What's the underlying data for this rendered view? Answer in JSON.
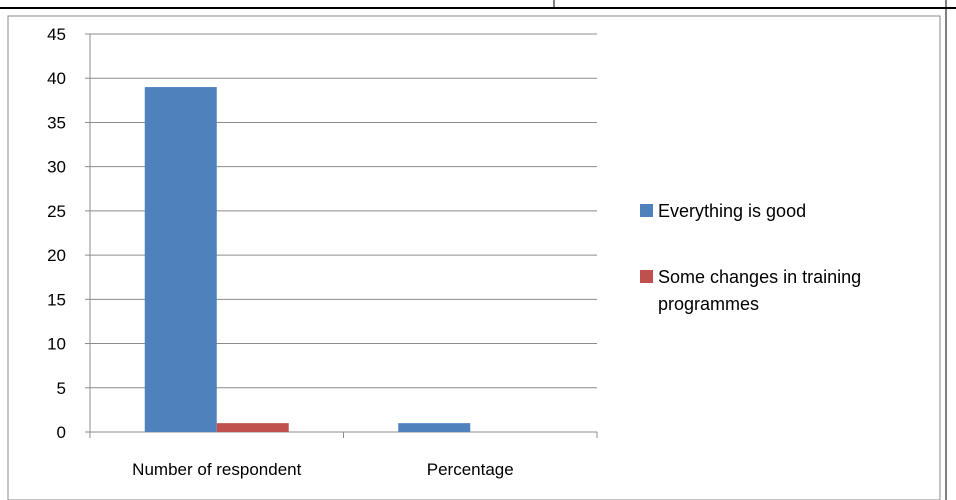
{
  "chart_data": {
    "type": "bar",
    "categories": [
      "Number of respondent",
      "Percentage"
    ],
    "series": [
      {
        "name": "Everything is good",
        "color": "#4F81BD",
        "values": [
          39,
          1
        ]
      },
      {
        "name": "Some changes in training programmes",
        "color": "#C0504D",
        "values": [
          1,
          0
        ]
      }
    ],
    "legend": {
      "position": "right",
      "entries": [
        {
          "lines": [
            "Everything is good"
          ],
          "color": "#4F81BD"
        },
        {
          "lines": [
            "Some changes in training",
            "programmes"
          ],
          "color": "#C0504D"
        }
      ]
    },
    "ylim": [
      0,
      45
    ],
    "yticks": [
      0,
      5,
      10,
      15,
      20,
      25,
      30,
      35,
      40,
      45
    ],
    "grid": true,
    "title": "",
    "xlabel": "",
    "ylabel": ""
  }
}
